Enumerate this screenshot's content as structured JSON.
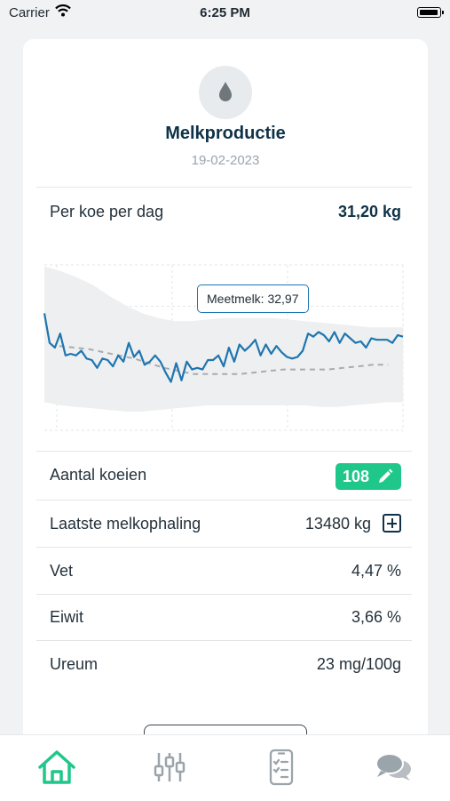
{
  "status_bar": {
    "carrier": "Carrier",
    "time": "6:25 PM"
  },
  "card": {
    "icon": "water-drop-icon",
    "title": "Melkproductie",
    "date": "19-02-2023",
    "per_cow": {
      "label": "Per koe per dag",
      "value": "31,20 kg"
    },
    "tooltip": "Meetmelk: 32,97",
    "rows": [
      {
        "label": "Aantal koeien",
        "value": "108",
        "action_icon": "pencil-icon"
      },
      {
        "label": "Laatste melkophaling",
        "value": "13480 kg",
        "action_icon": "plus-box-icon"
      },
      {
        "label": "Vet",
        "value": "4,47 %"
      },
      {
        "label": "Eiwit",
        "value": "3,66 %"
      },
      {
        "label": "Ureum",
        "value": "23 mg/100g"
      }
    ]
  },
  "chart_data": {
    "type": "line",
    "title": "",
    "xlabel": "",
    "ylabel": "",
    "grid": true,
    "series": [
      {
        "values": [
          34.5,
          32.6,
          32.3,
          33.2,
          31.8,
          31.9,
          31.8,
          32.1,
          31.6,
          31.5,
          31.0,
          31.6,
          31.5,
          31.1,
          31.8,
          31.4,
          32.6,
          31.7,
          32.1,
          31.2,
          31.4,
          31.8,
          31.4,
          30.7,
          30.1,
          31.3,
          30.2,
          31.4,
          30.9,
          31.0,
          30.9,
          31.5,
          31.5,
          31.8,
          31.1,
          32.3,
          31.4,
          32.5,
          32.1,
          32.4,
          32.8,
          31.8,
          32.5,
          31.9,
          32.4,
          32.0,
          31.7,
          31.6,
          31.7,
          32.1,
          33.2,
          33.0,
          33.3,
          33.1,
          32.7,
          33.3,
          32.6,
          33.2,
          32.9,
          32.6,
          32.7,
          32.3,
          32.9,
          32.8,
          32.8,
          32.8,
          32.6,
          33.1,
          33.0
        ]
      },
      {
        "values": [
          32.4,
          32.3,
          32.2,
          32.0,
          31.8,
          31.6,
          31.3,
          31.0,
          30.8,
          30.6,
          30.6,
          30.6,
          30.6,
          30.7,
          30.8,
          30.9,
          30.9,
          30.9,
          30.9,
          31.0,
          31.1,
          31.2,
          31.2
        ]
      }
    ],
    "band": {
      "upper": [
        37.5,
        37.2,
        36.8,
        36.3,
        35.6,
        35.0,
        34.5,
        34.2,
        34.0,
        34.0,
        34.1,
        34.2,
        34.2,
        34.2,
        34.2,
        34.1,
        34.0,
        33.9,
        33.8,
        33.7,
        33.6,
        33.6,
        33.6
      ],
      "lower": [
        28.8,
        28.6,
        28.5,
        28.4,
        28.3,
        28.2,
        28.2,
        28.3,
        28.4,
        28.5,
        28.6,
        28.6,
        28.6,
        28.6,
        28.6,
        28.6,
        28.6,
        28.5,
        28.5,
        28.6,
        28.7,
        28.8,
        28.8
      ]
    },
    "ylim": [
      27.0,
      37.6
    ],
    "colors": {
      "line": "#1e76b0",
      "average": "#a7acb0",
      "band": "#eeeff0"
    }
  },
  "tab_bar": {
    "tabs": [
      {
        "icon": "home-icon",
        "active": true
      },
      {
        "icon": "sliders-icon",
        "active": false
      },
      {
        "icon": "checklist-icon",
        "active": false
      },
      {
        "icon": "chat-bubbles-icon",
        "active": false
      }
    ],
    "active_color": "#1fc78a",
    "inactive_color": "#9aa4ab"
  }
}
